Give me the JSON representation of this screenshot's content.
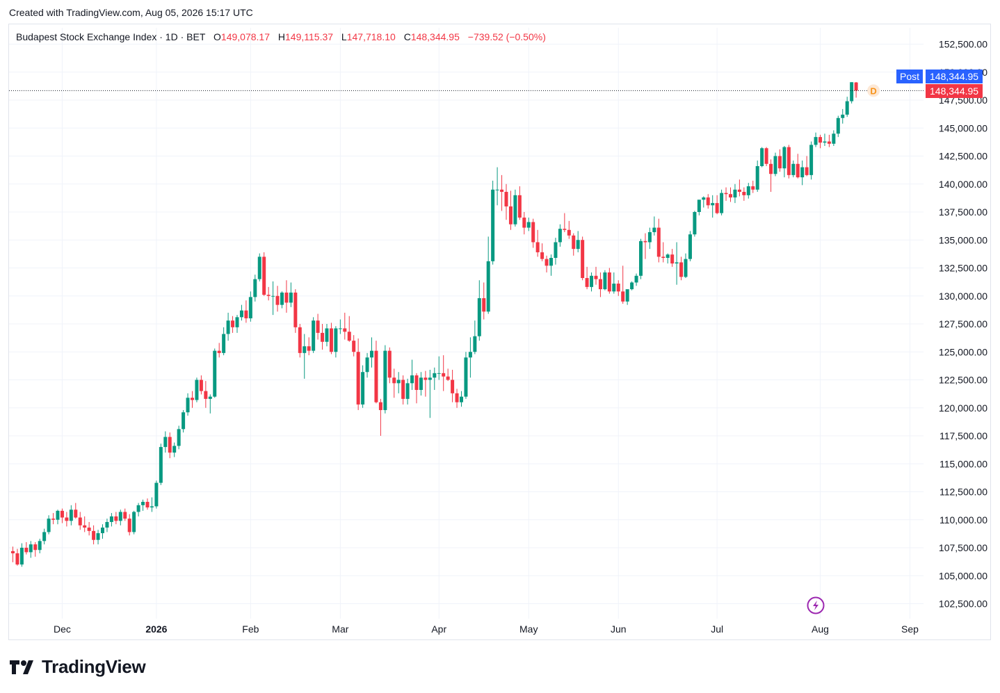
{
  "header": {
    "created_text": "Created with TradingView.com, Aug 05, 2026 15:17 UTC"
  },
  "legend": {
    "title": "Budapest Stock Exchange Index · 1D · BET",
    "o_label": "O",
    "o_value": "149,078.17",
    "h_label": "H",
    "h_value": "149,115.37",
    "l_label": "L",
    "l_value": "147,718.10",
    "c_label": "C",
    "c_value": "148,344.95",
    "change": "−739.52 (−0.50%)"
  },
  "price_tags": {
    "post_label": "Post",
    "post_value": "148,344.95",
    "last_value": "148,344.95",
    "d_marker": "D"
  },
  "footer": {
    "logo_text": "TradingView"
  },
  "colors": {
    "up": "#089981",
    "down": "#f23645",
    "post": "#2962ff",
    "grid": "#f0f3fa"
  },
  "chart_data": {
    "type": "candlestick",
    "title": "Budapest Stock Exchange Index · 1D · BET",
    "ylim": [
      101000,
      153500
    ],
    "y_ticks": [
      152500,
      150000,
      147500,
      145000,
      142500,
      140000,
      137500,
      135000,
      132500,
      130000,
      127500,
      125000,
      122500,
      120000,
      117500,
      115000,
      112500,
      110000,
      107500,
      105000,
      102500
    ],
    "y_tick_labels": [
      "152,500.00",
      "150,000.00",
      "147,500.00",
      "145,000.00",
      "142,500.00",
      "140,000.00",
      "137,500.00",
      "135,000.00",
      "132,500.00",
      "130,000.00",
      "127,500.00",
      "125,000.00",
      "122,500.00",
      "120,000.00",
      "117,500.00",
      "115,000.00",
      "112,500.00",
      "110,000.00",
      "107,500.00",
      "105,000.00",
      "102,500.00"
    ],
    "x_labels": [
      {
        "label": "Dec",
        "index": 11,
        "bold": false
      },
      {
        "label": "2026",
        "index": 32,
        "bold": true
      },
      {
        "label": "Feb",
        "index": 53,
        "bold": false
      },
      {
        "label": "Mar",
        "index": 73,
        "bold": false
      },
      {
        "label": "Apr",
        "index": 95,
        "bold": false
      },
      {
        "label": "May",
        "index": 115,
        "bold": false
      },
      {
        "label": "Jun",
        "index": 135,
        "bold": false
      },
      {
        "label": "Jul",
        "index": 157,
        "bold": false
      },
      {
        "label": "Aug",
        "index": 180,
        "bold": false
      },
      {
        "label": "Sep",
        "index": 200,
        "bold": false
      }
    ],
    "candles": [
      [
        107200,
        107600,
        106200,
        107000
      ],
      [
        107000,
        107400,
        105900,
        106000
      ],
      [
        106000,
        107900,
        105800,
        107500
      ],
      [
        107500,
        108000,
        106900,
        107100
      ],
      [
        107100,
        108100,
        106600,
        107800
      ],
      [
        107800,
        108000,
        106700,
        107300
      ],
      [
        107300,
        108300,
        107000,
        108100
      ],
      [
        108100,
        109200,
        107800,
        108900
      ],
      [
        108900,
        110400,
        108700,
        110100
      ],
      [
        110100,
        110600,
        109600,
        110000
      ],
      [
        110000,
        110900,
        109600,
        110800
      ],
      [
        110800,
        111000,
        109700,
        110200
      ],
      [
        110200,
        110700,
        109400,
        109900
      ],
      [
        109900,
        111300,
        109500,
        110900
      ],
      [
        110900,
        111500,
        110100,
        110200
      ],
      [
        110200,
        110700,
        109100,
        109500
      ],
      [
        109500,
        110300,
        108900,
        109300
      ],
      [
        109300,
        109800,
        108600,
        109000
      ],
      [
        109000,
        109500,
        107800,
        108200
      ],
      [
        108200,
        109100,
        107800,
        108800
      ],
      [
        108800,
        109600,
        108300,
        109300
      ],
      [
        109300,
        110100,
        108900,
        109800
      ],
      [
        109800,
        110600,
        109400,
        110300
      ],
      [
        110300,
        110700,
        109600,
        109900
      ],
      [
        109900,
        110900,
        109500,
        110700
      ],
      [
        110700,
        111000,
        109900,
        110100
      ],
      [
        110100,
        110500,
        108600,
        108900
      ],
      [
        108900,
        110800,
        108700,
        110700
      ],
      [
        110700,
        111500,
        110300,
        111300
      ],
      [
        111300,
        111800,
        110800,
        111600
      ],
      [
        111600,
        111900,
        110900,
        111100
      ],
      [
        111100,
        112000,
        110700,
        111200
      ],
      [
        111200,
        113500,
        111000,
        113300
      ],
      [
        113300,
        116800,
        113100,
        116500
      ],
      [
        116500,
        117900,
        116000,
        117400
      ],
      [
        117400,
        117800,
        115500,
        116000
      ],
      [
        116000,
        116900,
        115600,
        116600
      ],
      [
        116600,
        118400,
        116300,
        118100
      ],
      [
        118100,
        119800,
        117800,
        119600
      ],
      [
        119600,
        121300,
        119300,
        120900
      ],
      [
        120900,
        121500,
        120000,
        120700
      ],
      [
        120700,
        122700,
        120500,
        122500
      ],
      [
        122500,
        122900,
        121200,
        121500
      ],
      [
        121500,
        122400,
        120000,
        120800
      ],
      [
        120800,
        121200,
        119500,
        121000
      ],
      [
        121000,
        125300,
        120900,
        125100
      ],
      [
        125100,
        125800,
        124500,
        124900
      ],
      [
        124900,
        127200,
        124700,
        126600
      ],
      [
        126600,
        128500,
        126000,
        127800
      ],
      [
        127800,
        128200,
        126700,
        127200
      ],
      [
        127200,
        128300,
        126700,
        128100
      ],
      [
        128100,
        129200,
        127800,
        128700
      ],
      [
        128700,
        129600,
        127600,
        128000
      ],
      [
        128000,
        130400,
        127700,
        129900
      ],
      [
        129900,
        131900,
        129500,
        131500
      ],
      [
        131500,
        133800,
        131300,
        133500
      ],
      [
        133500,
        133900,
        130000,
        130100
      ],
      [
        130100,
        130800,
        129600,
        130000
      ],
      [
        130000,
        131300,
        128300,
        130000
      ],
      [
        130000,
        130900,
        128600,
        129200
      ],
      [
        129200,
        130400,
        128900,
        130300
      ],
      [
        130300,
        131400,
        128500,
        129400
      ],
      [
        129400,
        131200,
        129000,
        130300
      ],
      [
        130300,
        130600,
        126700,
        127200
      ],
      [
        127200,
        127500,
        124500,
        124900
      ],
      [
        124900,
        126600,
        122600,
        125500
      ],
      [
        125500,
        126300,
        124700,
        125100
      ],
      [
        125100,
        128100,
        124900,
        127800
      ],
      [
        127800,
        128400,
        126100,
        126700
      ],
      [
        126700,
        127500,
        125200,
        125900
      ],
      [
        125900,
        127500,
        125500,
        127100
      ],
      [
        127100,
        127600,
        124800,
        125000
      ],
      [
        125000,
        127300,
        124500,
        127100
      ],
      [
        127100,
        127900,
        126600,
        127100
      ],
      [
        127100,
        128500,
        126100,
        126800
      ],
      [
        126800,
        128200,
        125900,
        126000
      ],
      [
        126000,
        126500,
        124600,
        125000
      ],
      [
        125000,
        126200,
        119800,
        120300
      ],
      [
        120300,
        123800,
        120000,
        123200
      ],
      [
        123200,
        124900,
        122700,
        124500
      ],
      [
        124500,
        126300,
        123600,
        125100
      ],
      [
        125100,
        126000,
        120400,
        120500
      ],
      [
        120500,
        120800,
        117500,
        119800
      ],
      [
        119800,
        125600,
        119500,
        125100
      ],
      [
        125100,
        125400,
        122200,
        122700
      ],
      [
        122700,
        123500,
        120900,
        122200
      ],
      [
        122200,
        123200,
        121300,
        122500
      ],
      [
        122500,
        122900,
        120300,
        120800
      ],
      [
        120800,
        122600,
        120300,
        122200
      ],
      [
        122200,
        124300,
        121600,
        122900
      ],
      [
        122900,
        123100,
        120400,
        121600
      ],
      [
        121600,
        123200,
        121100,
        122700
      ],
      [
        122700,
        123300,
        121000,
        122500
      ],
      [
        122500,
        123400,
        119100,
        122700
      ],
      [
        122700,
        123600,
        121600,
        123100
      ],
      [
        123100,
        124600,
        122500,
        123100
      ],
      [
        123100,
        124700,
        121500,
        122800
      ],
      [
        122800,
        123500,
        122400,
        122500
      ],
      [
        122500,
        123400,
        120500,
        121300
      ],
      [
        121300,
        121700,
        120000,
        120500
      ],
      [
        120500,
        121500,
        120100,
        121000
      ],
      [
        121000,
        125000,
        120800,
        124500
      ],
      [
        124500,
        126300,
        122700,
        125000
      ],
      [
        125000,
        127800,
        124800,
        126400
      ],
      [
        126400,
        131400,
        126000,
        129800
      ],
      [
        129800,
        131200,
        127900,
        128600
      ],
      [
        128600,
        135300,
        128400,
        133100
      ],
      [
        133100,
        140300,
        132800,
        139500
      ],
      [
        139500,
        141500,
        138100,
        139500
      ],
      [
        139500,
        140800,
        137600,
        139300
      ],
      [
        139300,
        140000,
        136800,
        138000
      ],
      [
        138000,
        139400,
        135900,
        136400
      ],
      [
        136400,
        139500,
        136200,
        139000
      ],
      [
        139000,
        139800,
        136800,
        137000
      ],
      [
        137000,
        137500,
        135500,
        136100
      ],
      [
        136100,
        137000,
        135800,
        136600
      ],
      [
        136600,
        136900,
        134300,
        134800
      ],
      [
        134800,
        135900,
        133500,
        133900
      ],
      [
        133900,
        134700,
        133100,
        133300
      ],
      [
        133300,
        133600,
        132100,
        132700
      ],
      [
        132700,
        133700,
        131800,
        133400
      ],
      [
        133400,
        135200,
        132800,
        134800
      ],
      [
        134800,
        136400,
        134400,
        136000
      ],
      [
        136000,
        137400,
        135700,
        135900
      ],
      [
        135900,
        136700,
        135100,
        135400
      ],
      [
        135400,
        135600,
        133600,
        134200
      ],
      [
        134200,
        135800,
        133900,
        135000
      ],
      [
        135000,
        135300,
        131400,
        131600
      ],
      [
        131600,
        132600,
        130600,
        130800
      ],
      [
        130800,
        132100,
        130400,
        131800
      ],
      [
        131800,
        132600,
        131000,
        131500
      ],
      [
        131500,
        132100,
        129900,
        130600
      ],
      [
        130600,
        132300,
        130500,
        132100
      ],
      [
        132100,
        132500,
        130200,
        130400
      ],
      [
        130400,
        132100,
        130200,
        131100
      ],
      [
        131100,
        131400,
        130000,
        130400
      ],
      [
        130400,
        132700,
        129300,
        129500
      ],
      [
        129500,
        130300,
        129200,
        130600
      ],
      [
        130600,
        131300,
        130500,
        131200
      ],
      [
        131200,
        132000,
        130900,
        131800
      ],
      [
        131800,
        135100,
        131500,
        134900
      ],
      [
        134900,
        135600,
        133300,
        134800
      ],
      [
        134800,
        136100,
        134200,
        135700
      ],
      [
        135700,
        137100,
        135400,
        136100
      ],
      [
        136100,
        136900,
        133000,
        133500
      ],
      [
        133500,
        134800,
        133000,
        133400
      ],
      [
        133400,
        133800,
        132900,
        133700
      ],
      [
        133700,
        134200,
        132600,
        132900
      ],
      [
        132900,
        134800,
        131000,
        133000
      ],
      [
        133000,
        133500,
        131400,
        131700
      ],
      [
        131700,
        133800,
        131600,
        133300
      ],
      [
        133300,
        135800,
        133100,
        135500
      ],
      [
        135500,
        137600,
        135300,
        137500
      ],
      [
        137500,
        138500,
        137200,
        138600
      ],
      [
        138600,
        138900,
        137900,
        138800
      ],
      [
        138800,
        139100,
        137800,
        138100
      ],
      [
        138100,
        139000,
        137000,
        138300
      ],
      [
        138300,
        139000,
        137300,
        137400
      ],
      [
        137400,
        139500,
        137200,
        139200
      ],
      [
        139200,
        139700,
        138500,
        139100
      ],
      [
        139100,
        139700,
        138400,
        138800
      ],
      [
        138800,
        140000,
        138300,
        139500
      ],
      [
        139500,
        140400,
        138900,
        139300
      ],
      [
        139300,
        139700,
        138500,
        139000
      ],
      [
        139000,
        140100,
        138700,
        139800
      ],
      [
        139800,
        140300,
        139200,
        139500
      ],
      [
        139500,
        142100,
        139300,
        141600
      ],
      [
        141600,
        143300,
        141500,
        143200
      ],
      [
        143200,
        143300,
        141600,
        141800
      ],
      [
        141800,
        142200,
        139300,
        140900
      ],
      [
        140900,
        142800,
        140700,
        142500
      ],
      [
        142500,
        143100,
        141100,
        141400
      ],
      [
        141400,
        143400,
        140600,
        143300
      ],
      [
        143300,
        143500,
        140500,
        140800
      ],
      [
        140800,
        142100,
        140600,
        141800
      ],
      [
        141800,
        142700,
        140500,
        140600
      ],
      [
        140600,
        142100,
        139900,
        141500
      ],
      [
        141500,
        142500,
        140700,
        140800
      ],
      [
        140800,
        143800,
        140400,
        143500
      ],
      [
        143500,
        144600,
        143300,
        144200
      ],
      [
        144200,
        144400,
        143200,
        143700
      ],
      [
        143700,
        144500,
        143400,
        143800
      ],
      [
        143800,
        144400,
        143300,
        143600
      ],
      [
        143600,
        144800,
        143400,
        144500
      ],
      [
        144500,
        146100,
        144200,
        145900
      ],
      [
        145900,
        146700,
        145400,
        146200
      ],
      [
        146200,
        147800,
        146000,
        147400
      ],
      [
        147400,
        149100,
        147200,
        149100
      ],
      [
        149078,
        149115,
        147718,
        148345
      ]
    ]
  }
}
